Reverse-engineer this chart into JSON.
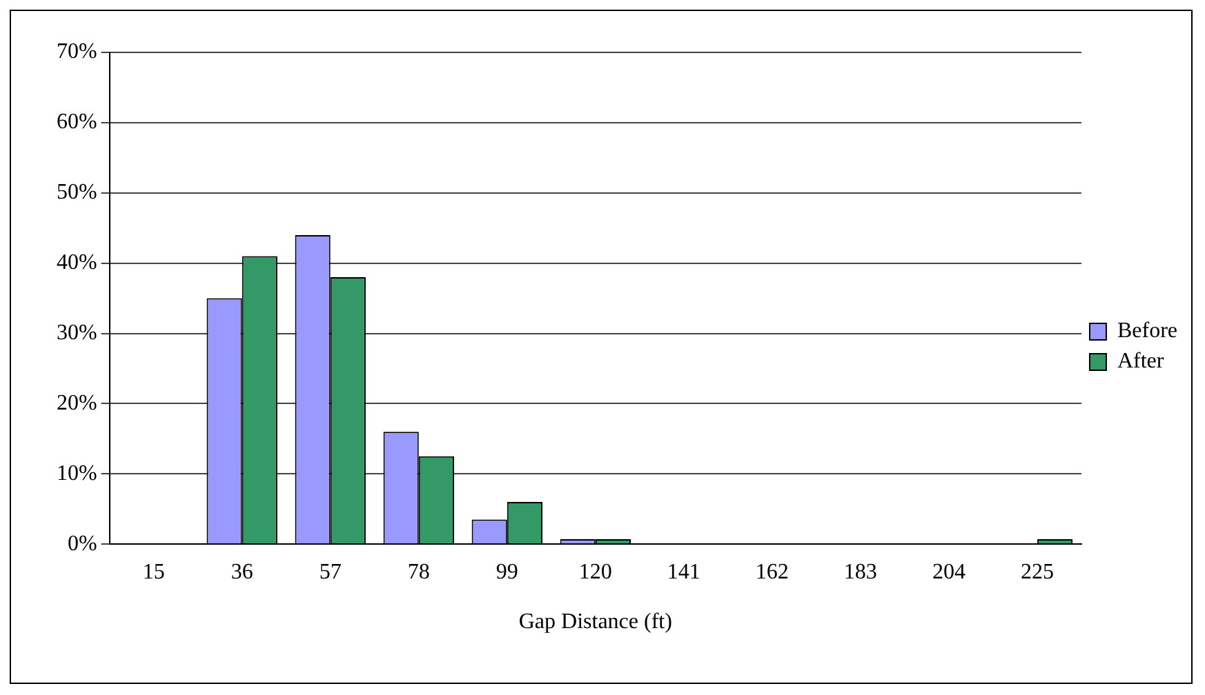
{
  "chart_data": {
    "type": "bar",
    "xlabel": "Gap Distance (ft)",
    "categories": [
      "15",
      "36",
      "57",
      "78",
      "99",
      "120",
      "141",
      "162",
      "183",
      "204",
      "225"
    ],
    "series": [
      {
        "name": "Before",
        "color": "#9999ff",
        "values": [
          0,
          35,
          44,
          16,
          3.5,
          0.7,
          0,
          0,
          0,
          0,
          0
        ]
      },
      {
        "name": "After",
        "color": "#339966",
        "values": [
          0,
          41,
          38,
          12.5,
          6,
          0.7,
          0,
          0,
          0,
          0,
          0.7
        ]
      }
    ],
    "ylim": [
      0,
      70
    ],
    "yticks": [
      {
        "value": 0,
        "label": "0%"
      },
      {
        "value": 10,
        "label": "10%"
      },
      {
        "value": 20,
        "label": "20%"
      },
      {
        "value": 30,
        "label": "30%"
      },
      {
        "value": 40,
        "label": "40%"
      },
      {
        "value": 50,
        "label": "50%"
      },
      {
        "value": 60,
        "label": "60%"
      },
      {
        "value": 70,
        "label": "70%"
      }
    ],
    "grid": "y",
    "legend": "right"
  }
}
